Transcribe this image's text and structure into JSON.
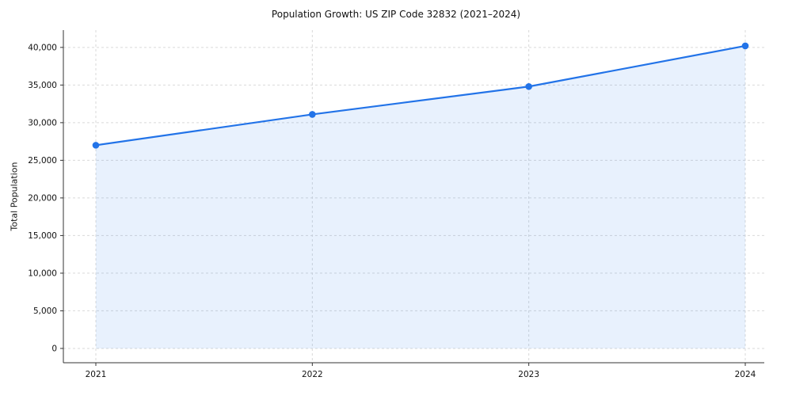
{
  "chart_data": {
    "type": "area",
    "title": "Population Growth: US ZIP Code 32832 (2021–2024)",
    "xlabel": "",
    "ylabel": "Total Population",
    "categories": [
      "2021",
      "2022",
      "2023",
      "2024"
    ],
    "series": [
      {
        "name": "Total Population",
        "values": [
          27000,
          31100,
          34800,
          40200
        ]
      }
    ],
    "ylim": [
      0,
      42000
    ],
    "yticks": [
      0,
      5000,
      10000,
      15000,
      20000,
      25000,
      30000,
      35000,
      40000
    ],
    "grid": true,
    "grid_style": "dashed",
    "legend": false,
    "line_color": "#2273e8",
    "fill_color": "#2273e8",
    "fill_opacity": 0.1,
    "grid_color": "#d9d9d9",
    "axis_color": "#333333",
    "marker": "circle"
  }
}
